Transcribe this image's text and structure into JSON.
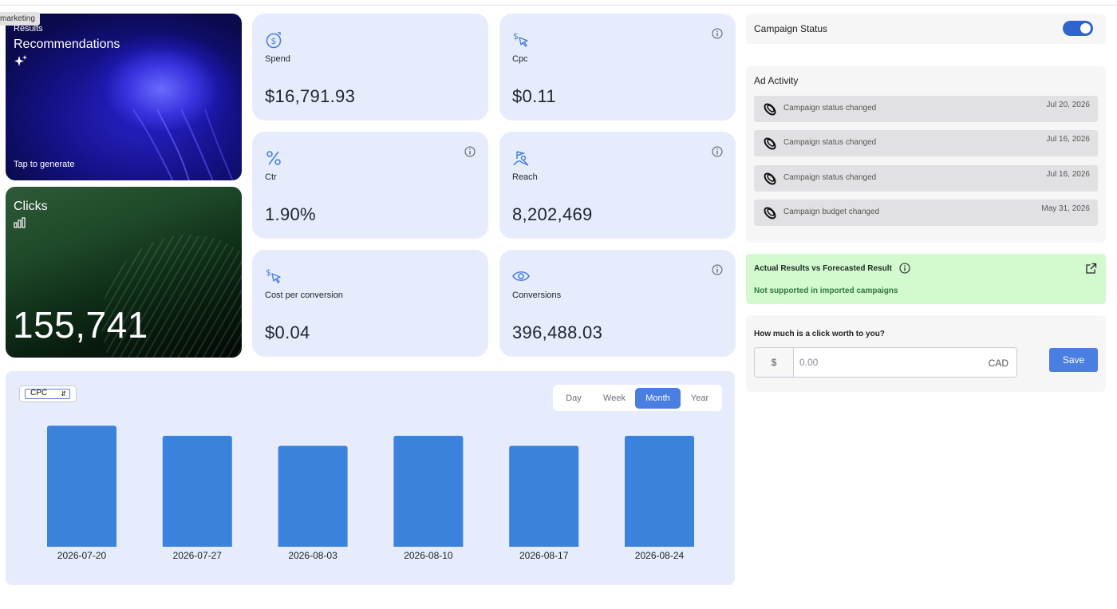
{
  "tooltip": "marketing",
  "hero": {
    "recommendations": {
      "small": "Results",
      "title": "Recommendations",
      "cta": "Tap to generate"
    },
    "clicks": {
      "title": "Clicks",
      "value": "155,741"
    }
  },
  "metrics": [
    {
      "label": "Spend",
      "value": "$16,791.93",
      "icon": "dollar-circle-icon"
    },
    {
      "label": "Cpc",
      "value": "$0.11",
      "icon": "dollar-cursor-icon"
    },
    {
      "label": "Ctr",
      "value": "1.90%",
      "icon": "percent-icon"
    },
    {
      "label": "Reach",
      "value": "8,202,469",
      "icon": "reach-icon"
    },
    {
      "label": "Cost per conversion",
      "value": "$0.04",
      "icon": "dollar-cursor-icon"
    },
    {
      "label": "Conversions",
      "value": "396,488.03",
      "icon": "eye-icon"
    }
  ],
  "chart": {
    "metric_select": "CPC",
    "periods": [
      "Day",
      "Week",
      "Month",
      "Year"
    ],
    "active_period": "Month"
  },
  "chart_data": {
    "type": "bar",
    "categories": [
      "2026-07-20",
      "2026-07-27",
      "2026-08-03",
      "2026-08-10",
      "2026-08-17",
      "2026-08-24"
    ],
    "values": [
      0.12,
      0.11,
      0.1,
      0.11,
      0.1,
      0.11
    ],
    "title": "",
    "xlabel": "",
    "ylabel": "",
    "ylim": [
      0,
      0.125
    ],
    "grid": false,
    "color": "#3b82dd"
  },
  "campaign_status": {
    "label": "Campaign Status",
    "enabled": true
  },
  "ad_activity": {
    "title": "Ad Activity",
    "items": [
      {
        "text": "Campaign status changed",
        "date": "Jul 20, 2026"
      },
      {
        "text": "Campaign status changed",
        "date": "Jul 16, 2026"
      },
      {
        "text": "Campaign status changed",
        "date": "Jul 16, 2026"
      },
      {
        "text": "Campaign budget changed",
        "date": "May 31, 2026"
      }
    ]
  },
  "forecast": {
    "title": "Actual Results vs Forecasted Result",
    "note": "Not supported in imported campaigns"
  },
  "click_worth": {
    "label": "How much is a click worth to you?",
    "prefix": "$",
    "placeholder": "0.00",
    "suffix": "CAD",
    "save_label": "Save"
  },
  "colors": {
    "accent": "#4a7ee0",
    "card_bg": "#e6ecfc",
    "bar": "#3b82dd",
    "forecast_bg": "#d3f9cf"
  }
}
